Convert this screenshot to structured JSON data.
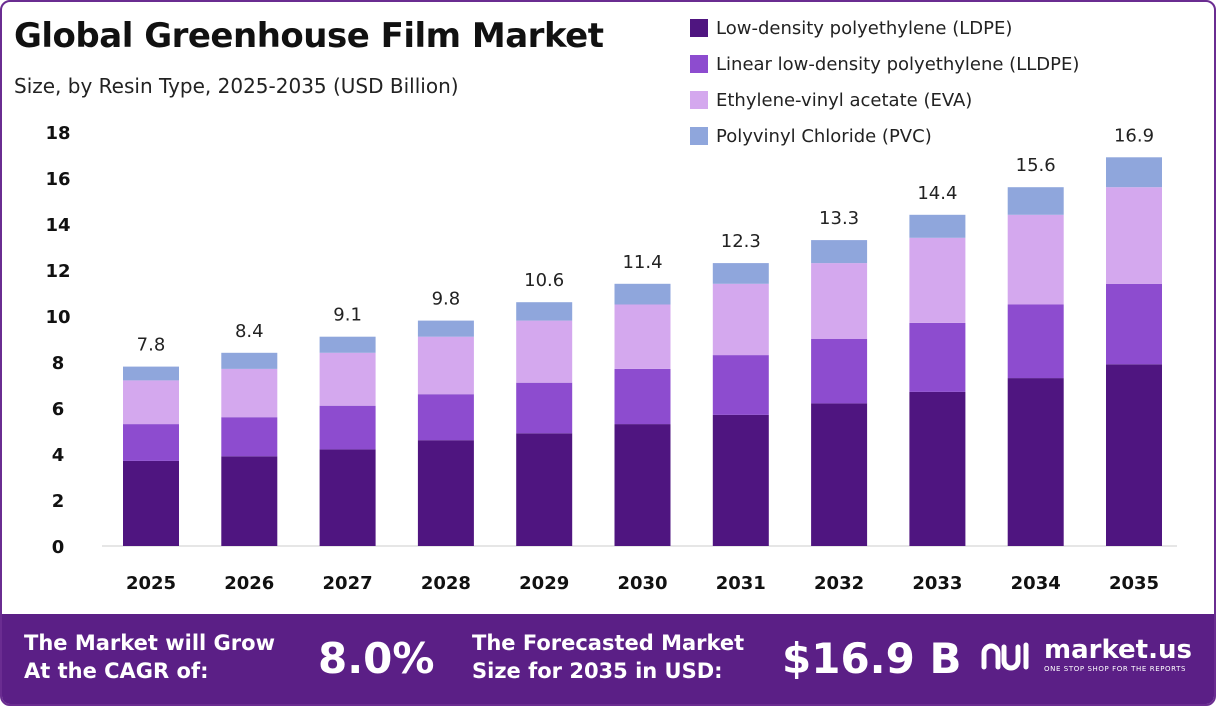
{
  "header": {
    "title": "Global Greenhouse Film Market",
    "subtitle": "Size, by Resin Type, 2025-2035 (USD Billion)"
  },
  "legend": [
    {
      "label": "Low-density polyethylene (LDPE)",
      "color": "#4f1580"
    },
    {
      "label": "Linear low-density polyethylene (LLDPE)",
      "color": "#8d4ccf"
    },
    {
      "label": "Ethylene-vinyl acetate (EVA)",
      "color": "#d4a8ee"
    },
    {
      "label": "Polyvinyl Chloride (PVC)",
      "color": "#8fa6dc"
    }
  ],
  "chart_data": {
    "type": "bar",
    "stacked": true,
    "categories": [
      "2025",
      "2026",
      "2027",
      "2028",
      "2029",
      "2030",
      "2031",
      "2032",
      "2033",
      "2034",
      "2035"
    ],
    "series": [
      {
        "name": "Low-density polyethylene (LDPE)",
        "color": "#4f1580",
        "values": [
          3.7,
          3.9,
          4.2,
          4.6,
          4.9,
          5.3,
          5.7,
          6.2,
          6.7,
          7.3,
          7.9
        ]
      },
      {
        "name": "Linear low-density polyethylene (LLDPE)",
        "color": "#8d4ccf",
        "values": [
          1.6,
          1.7,
          1.9,
          2.0,
          2.2,
          2.4,
          2.6,
          2.8,
          3.0,
          3.2,
          3.5
        ]
      },
      {
        "name": "Ethylene-vinyl acetate (EVA)",
        "color": "#d4a8ee",
        "values": [
          1.9,
          2.1,
          2.3,
          2.5,
          2.7,
          2.8,
          3.1,
          3.3,
          3.7,
          3.9,
          4.2
        ]
      },
      {
        "name": "Polyvinyl Chloride (PVC)",
        "color": "#8fa6dc",
        "values": [
          0.6,
          0.7,
          0.7,
          0.7,
          0.8,
          0.9,
          0.9,
          1.0,
          1.0,
          1.2,
          1.3
        ]
      }
    ],
    "totals": [
      "7.8",
      "8.4",
      "9.1",
      "9.8",
      "10.6",
      "11.4",
      "12.3",
      "13.3",
      "14.4",
      "15.6",
      "16.9"
    ],
    "y_ticks": [
      0,
      2,
      4,
      6,
      8,
      10,
      12,
      14,
      16,
      18
    ],
    "ylim": [
      0,
      18
    ],
    "grid": false,
    "legend_position": "top-right"
  },
  "footer": {
    "cagr_label": "The Market will Grow\nAt the CAGR of:",
    "cagr_value": "8.0%",
    "forecast_label": "The Forecasted Market\nSize for 2035 in USD:",
    "forecast_value": "$16.9 B",
    "brand_name": "market.us",
    "brand_tagline": "ONE STOP SHOP FOR THE REPORTS",
    "brand_icon": "market-us-logo-icon"
  }
}
